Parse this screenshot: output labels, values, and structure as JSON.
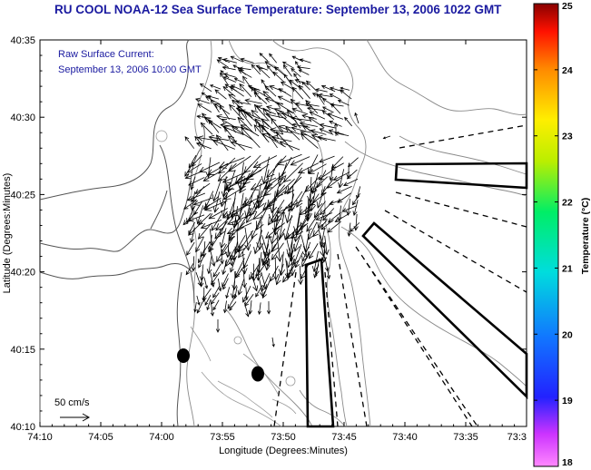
{
  "title": "RU COOL  NOAA-12  Sea Surface Temperature:  September 13, 2006 1022 GMT",
  "annotation": {
    "line1": "Raw Surface Current:",
    "line2": "September 13, 2006 10:00 GMT"
  },
  "scale_label": "50 cm/s",
  "axes": {
    "xlabel": "Longitude (Degrees:Minutes)",
    "ylabel": "Latitude (Degrees:Minutes)",
    "xticks": [
      "74:10",
      "74:05",
      "74:00",
      "73:55",
      "73:50",
      "73:45",
      "73:40",
      "73:35",
      "73:3"
    ],
    "yticks": [
      "40:35",
      "40:30",
      "40:25",
      "40:20",
      "40:15",
      "40:10"
    ]
  },
  "colorbar": {
    "label": "Temperature (°C)",
    "ticks": [
      "25",
      "24",
      "23",
      "22",
      "21",
      "20",
      "19",
      "18"
    ],
    "min": 18,
    "max": 25
  },
  "colors": {
    "title": "#1a1aa0",
    "contour": "#888888",
    "arrow": "#000000"
  }
}
